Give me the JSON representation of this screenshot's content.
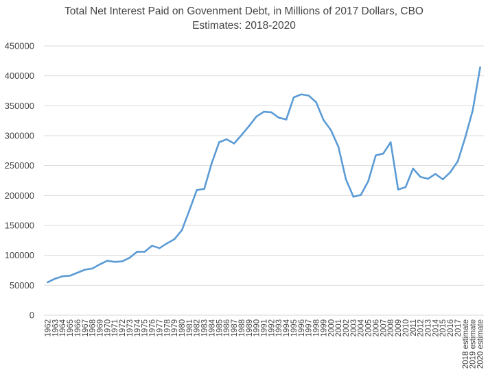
{
  "chart_data": {
    "type": "line",
    "title_line1": "Total Net Interest Paid on Govenment Debt, in Millions of 2017 Dollars, CBO",
    "title_line2": "Estimates: 2018-2020",
    "xlabel": "",
    "ylabel": "",
    "ylim": [
      0,
      450000
    ],
    "yticks": [
      "0",
      "50000",
      "100000",
      "150000",
      "200000",
      "250000",
      "300000",
      "350000",
      "400000",
      "450000"
    ],
    "grid": true,
    "legend": "none",
    "line_color": "#5b9bd5",
    "grid_color": "#d9d9d9",
    "categories": [
      "1962",
      "1963",
      "1964",
      "1965",
      "1966",
      "1967",
      "1968",
      "1969",
      "1970",
      "1971",
      "1972",
      "1973",
      "1974",
      "1975",
      "1976",
      "1977",
      "1978",
      "1979",
      "1980",
      "1981",
      "1982",
      "1983",
      "1984",
      "1985",
      "1986",
      "1987",
      "1988",
      "1989",
      "1990",
      "1991",
      "1992",
      "1993",
      "1994",
      "1995",
      "1996",
      "1997",
      "1998",
      "1999",
      "2000",
      "2001",
      "2002",
      "2003",
      "2004",
      "2005",
      "2006",
      "2007",
      "2008",
      "2009",
      "2010",
      "2011",
      "2012",
      "2013",
      "2014",
      "2015",
      "2016",
      "2017",
      "2018 estimate",
      "2019 estimate",
      "2020 estimate"
    ],
    "values": [
      55000,
      61000,
      65000,
      66000,
      71000,
      76000,
      78000,
      85000,
      91000,
      89000,
      90000,
      96000,
      106000,
      106000,
      116000,
      112000,
      120000,
      127000,
      142000,
      175000,
      209000,
      211000,
      254000,
      289000,
      294000,
      287000,
      301000,
      316000,
      332000,
      340000,
      339000,
      330000,
      327000,
      364000,
      369000,
      367000,
      356000,
      326000,
      309000,
      281000,
      227000,
      198000,
      201000,
      224000,
      267000,
      270000,
      289000,
      210000,
      214000,
      245000,
      231000,
      228000,
      236000,
      227000,
      239000,
      257000,
      297000,
      342000,
      414000
    ]
  }
}
